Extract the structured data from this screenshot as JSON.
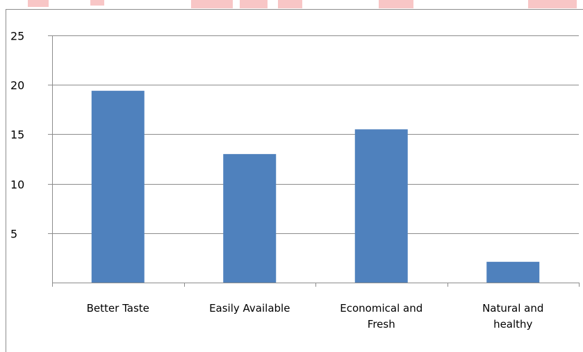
{
  "chart_data": {
    "type": "bar",
    "categories": [
      "Better Taste",
      "Easily Available",
      "Economical and Fresh",
      "Natural and healthy"
    ],
    "category_lines": [
      [
        "Better Taste"
      ],
      [
        "Easily Available"
      ],
      [
        "Economical and",
        "Fresh"
      ],
      [
        "Natural and",
        "healthy"
      ]
    ],
    "values": [
      19.4,
      13.0,
      15.5,
      2.1
    ],
    "ylim": [
      0,
      25
    ],
    "yticks": [
      5,
      10,
      15,
      20,
      25
    ],
    "title": "",
    "xlabel": "",
    "ylabel": "",
    "grid": true,
    "legend": "none",
    "bar_color": "#4f81bd",
    "grid_color": "#8c8c8c"
  },
  "background": {
    "stripe_color": "#fff9c4",
    "watermark_color": "#f08080"
  }
}
